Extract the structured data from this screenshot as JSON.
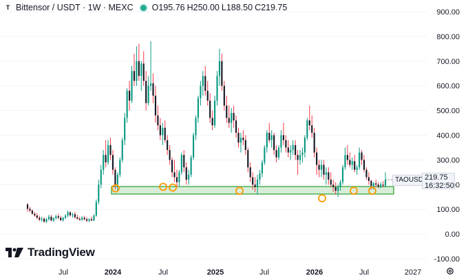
{
  "header": {
    "title": "Bittensor / USDT · 1W · MEXC",
    "ohlc": [
      {
        "key": "O",
        "value": "195.76"
      },
      {
        "key": "H",
        "value": "250.00"
      },
      {
        "key": "L",
        "value": "188.50"
      },
      {
        "key": "C",
        "value": "219.75"
      }
    ]
  },
  "logo": {
    "text": "TradingView"
  },
  "price_tag": {
    "symbol": "TAOUSDT",
    "price": "219.75",
    "countdown": "16:32:50"
  },
  "colors": {
    "up": "#089981",
    "down": "#f23645",
    "support": "#4caf50",
    "marker": "#ff9800"
  },
  "chart_data": {
    "type": "candlestick",
    "y_ticks": [
      "900.00",
      "800.00",
      "700.00",
      "600.00",
      "500.00",
      "400.00",
      "300.00",
      "200.00",
      "100.00",
      "0.00",
      "-100.00"
    ],
    "y_range": [
      -100,
      900
    ],
    "x_ticks": [
      "Jul",
      "2024",
      "Jul",
      "2025",
      "Jul",
      "2026",
      "Jul",
      "2027"
    ],
    "support_zone": {
      "low": 162,
      "high": 192
    },
    "support_touches": [
      185,
      191,
      188,
      175,
      145,
      175,
      175
    ],
    "series": [
      {
        "o": 120,
        "h": 125,
        "l": 90,
        "c": 102
      },
      {
        "o": 102,
        "h": 110,
        "l": 88,
        "c": 95
      },
      {
        "o": 95,
        "h": 100,
        "l": 78,
        "c": 82
      },
      {
        "o": 82,
        "h": 90,
        "l": 70,
        "c": 75
      },
      {
        "o": 75,
        "h": 85,
        "l": 60,
        "c": 66
      },
      {
        "o": 66,
        "h": 75,
        "l": 52,
        "c": 58
      },
      {
        "o": 58,
        "h": 70,
        "l": 50,
        "c": 62
      },
      {
        "o": 62,
        "h": 68,
        "l": 45,
        "c": 50
      },
      {
        "o": 50,
        "h": 65,
        "l": 44,
        "c": 60
      },
      {
        "o": 60,
        "h": 78,
        "l": 55,
        "c": 70
      },
      {
        "o": 70,
        "h": 78,
        "l": 52,
        "c": 55
      },
      {
        "o": 55,
        "h": 68,
        "l": 48,
        "c": 64
      },
      {
        "o": 64,
        "h": 78,
        "l": 58,
        "c": 72
      },
      {
        "o": 72,
        "h": 82,
        "l": 60,
        "c": 66
      },
      {
        "o": 66,
        "h": 74,
        "l": 52,
        "c": 56
      },
      {
        "o": 56,
        "h": 70,
        "l": 50,
        "c": 65
      },
      {
        "o": 65,
        "h": 80,
        "l": 60,
        "c": 75
      },
      {
        "o": 75,
        "h": 95,
        "l": 68,
        "c": 88
      },
      {
        "o": 88,
        "h": 92,
        "l": 70,
        "c": 76
      },
      {
        "o": 76,
        "h": 86,
        "l": 66,
        "c": 80
      },
      {
        "o": 80,
        "h": 90,
        "l": 62,
        "c": 68
      },
      {
        "o": 68,
        "h": 78,
        "l": 58,
        "c": 62
      },
      {
        "o": 62,
        "h": 70,
        "l": 54,
        "c": 58
      },
      {
        "o": 58,
        "h": 72,
        "l": 52,
        "c": 66
      },
      {
        "o": 66,
        "h": 74,
        "l": 55,
        "c": 60
      },
      {
        "o": 60,
        "h": 68,
        "l": 48,
        "c": 54
      },
      {
        "o": 54,
        "h": 64,
        "l": 48,
        "c": 60
      },
      {
        "o": 60,
        "h": 70,
        "l": 52,
        "c": 55
      },
      {
        "o": 55,
        "h": 80,
        "l": 52,
        "c": 75
      },
      {
        "o": 75,
        "h": 140,
        "l": 70,
        "c": 130
      },
      {
        "o": 130,
        "h": 220,
        "l": 120,
        "c": 200
      },
      {
        "o": 200,
        "h": 280,
        "l": 185,
        "c": 260
      },
      {
        "o": 260,
        "h": 340,
        "l": 240,
        "c": 320
      },
      {
        "o": 320,
        "h": 380,
        "l": 270,
        "c": 290
      },
      {
        "o": 290,
        "h": 380,
        "l": 280,
        "c": 360
      },
      {
        "o": 360,
        "h": 390,
        "l": 300,
        "c": 320
      },
      {
        "o": 320,
        "h": 340,
        "l": 240,
        "c": 260
      },
      {
        "o": 260,
        "h": 270,
        "l": 180,
        "c": 200
      },
      {
        "o": 200,
        "h": 250,
        "l": 175,
        "c": 240
      },
      {
        "o": 240,
        "h": 310,
        "l": 230,
        "c": 300
      },
      {
        "o": 300,
        "h": 390,
        "l": 290,
        "c": 380
      },
      {
        "o": 380,
        "h": 490,
        "l": 360,
        "c": 470
      },
      {
        "o": 470,
        "h": 590,
        "l": 450,
        "c": 580
      },
      {
        "o": 580,
        "h": 620,
        "l": 500,
        "c": 540
      },
      {
        "o": 540,
        "h": 680,
        "l": 530,
        "c": 660
      },
      {
        "o": 660,
        "h": 730,
        "l": 600,
        "c": 620
      },
      {
        "o": 620,
        "h": 760,
        "l": 600,
        "c": 700
      },
      {
        "o": 700,
        "h": 770,
        "l": 620,
        "c": 640
      },
      {
        "o": 640,
        "h": 700,
        "l": 580,
        "c": 690
      },
      {
        "o": 690,
        "h": 740,
        "l": 600,
        "c": 620
      },
      {
        "o": 620,
        "h": 660,
        "l": 500,
        "c": 530
      },
      {
        "o": 530,
        "h": 640,
        "l": 520,
        "c": 600
      },
      {
        "o": 600,
        "h": 780,
        "l": 580,
        "c": 610
      },
      {
        "o": 610,
        "h": 650,
        "l": 530,
        "c": 560
      },
      {
        "o": 560,
        "h": 600,
        "l": 450,
        "c": 480
      },
      {
        "o": 480,
        "h": 520,
        "l": 420,
        "c": 440
      },
      {
        "o": 440,
        "h": 470,
        "l": 380,
        "c": 400
      },
      {
        "o": 400,
        "h": 450,
        "l": 360,
        "c": 430
      },
      {
        "o": 430,
        "h": 460,
        "l": 370,
        "c": 380
      },
      {
        "o": 380,
        "h": 400,
        "l": 320,
        "c": 340
      },
      {
        "o": 340,
        "h": 360,
        "l": 280,
        "c": 300
      },
      {
        "o": 300,
        "h": 310,
        "l": 230,
        "c": 250
      },
      {
        "o": 250,
        "h": 300,
        "l": 210,
        "c": 230
      },
      {
        "o": 230,
        "h": 260,
        "l": 190,
        "c": 210
      },
      {
        "o": 210,
        "h": 260,
        "l": 195,
        "c": 250
      },
      {
        "o": 250,
        "h": 330,
        "l": 240,
        "c": 320
      },
      {
        "o": 320,
        "h": 340,
        "l": 250,
        "c": 270
      },
      {
        "o": 270,
        "h": 290,
        "l": 200,
        "c": 220
      },
      {
        "o": 220,
        "h": 260,
        "l": 200,
        "c": 240
      },
      {
        "o": 240,
        "h": 320,
        "l": 230,
        "c": 310
      },
      {
        "o": 310,
        "h": 410,
        "l": 300,
        "c": 400
      },
      {
        "o": 400,
        "h": 480,
        "l": 380,
        "c": 470
      },
      {
        "o": 470,
        "h": 560,
        "l": 450,
        "c": 550
      },
      {
        "o": 550,
        "h": 620,
        "l": 520,
        "c": 600
      },
      {
        "o": 600,
        "h": 660,
        "l": 560,
        "c": 640
      },
      {
        "o": 640,
        "h": 680,
        "l": 560,
        "c": 580
      },
      {
        "o": 580,
        "h": 620,
        "l": 520,
        "c": 540
      },
      {
        "o": 540,
        "h": 570,
        "l": 450,
        "c": 470
      },
      {
        "o": 470,
        "h": 500,
        "l": 420,
        "c": 440
      },
      {
        "o": 440,
        "h": 560,
        "l": 430,
        "c": 540
      },
      {
        "o": 540,
        "h": 660,
        "l": 520,
        "c": 640
      },
      {
        "o": 640,
        "h": 750,
        "l": 600,
        "c": 700
      },
      {
        "o": 700,
        "h": 730,
        "l": 580,
        "c": 600
      },
      {
        "o": 600,
        "h": 620,
        "l": 500,
        "c": 520
      },
      {
        "o": 520,
        "h": 560,
        "l": 450,
        "c": 470
      },
      {
        "o": 470,
        "h": 520,
        "l": 430,
        "c": 450
      },
      {
        "o": 450,
        "h": 510,
        "l": 410,
        "c": 490
      },
      {
        "o": 490,
        "h": 520,
        "l": 430,
        "c": 460
      },
      {
        "o": 460,
        "h": 480,
        "l": 390,
        "c": 410
      },
      {
        "o": 410,
        "h": 430,
        "l": 350,
        "c": 370
      },
      {
        "o": 370,
        "h": 410,
        "l": 330,
        "c": 390
      },
      {
        "o": 390,
        "h": 420,
        "l": 360,
        "c": 380
      },
      {
        "o": 380,
        "h": 400,
        "l": 320,
        "c": 340
      },
      {
        "o": 340,
        "h": 350,
        "l": 250,
        "c": 270
      },
      {
        "o": 270,
        "h": 290,
        "l": 210,
        "c": 230
      },
      {
        "o": 230,
        "h": 250,
        "l": 180,
        "c": 200
      },
      {
        "o": 200,
        "h": 230,
        "l": 170,
        "c": 190
      },
      {
        "o": 190,
        "h": 240,
        "l": 160,
        "c": 220
      },
      {
        "o": 220,
        "h": 260,
        "l": 200,
        "c": 245
      },
      {
        "o": 245,
        "h": 300,
        "l": 230,
        "c": 290
      },
      {
        "o": 290,
        "h": 360,
        "l": 280,
        "c": 350
      },
      {
        "o": 350,
        "h": 420,
        "l": 330,
        "c": 410
      },
      {
        "o": 410,
        "h": 450,
        "l": 370,
        "c": 380
      },
      {
        "o": 380,
        "h": 420,
        "l": 350,
        "c": 400
      },
      {
        "o": 400,
        "h": 410,
        "l": 320,
        "c": 340
      },
      {
        "o": 340,
        "h": 360,
        "l": 290,
        "c": 310
      },
      {
        "o": 310,
        "h": 360,
        "l": 300,
        "c": 350
      },
      {
        "o": 350,
        "h": 420,
        "l": 330,
        "c": 400
      },
      {
        "o": 400,
        "h": 450,
        "l": 360,
        "c": 380
      },
      {
        "o": 380,
        "h": 400,
        "l": 330,
        "c": 350
      },
      {
        "o": 350,
        "h": 380,
        "l": 310,
        "c": 330
      },
      {
        "o": 330,
        "h": 360,
        "l": 300,
        "c": 340
      },
      {
        "o": 340,
        "h": 380,
        "l": 320,
        "c": 360
      },
      {
        "o": 360,
        "h": 380,
        "l": 300,
        "c": 320
      },
      {
        "o": 320,
        "h": 340,
        "l": 240,
        "c": 300
      },
      {
        "o": 300,
        "h": 340,
        "l": 280,
        "c": 320
      },
      {
        "o": 320,
        "h": 350,
        "l": 290,
        "c": 330
      },
      {
        "o": 330,
        "h": 400,
        "l": 310,
        "c": 390
      },
      {
        "o": 390,
        "h": 470,
        "l": 380,
        "c": 460
      },
      {
        "o": 460,
        "h": 520,
        "l": 420,
        "c": 440
      },
      {
        "o": 440,
        "h": 480,
        "l": 390,
        "c": 410
      },
      {
        "o": 410,
        "h": 430,
        "l": 310,
        "c": 330
      },
      {
        "o": 330,
        "h": 350,
        "l": 240,
        "c": 280
      },
      {
        "o": 280,
        "h": 300,
        "l": 230,
        "c": 260
      },
      {
        "o": 260,
        "h": 300,
        "l": 230,
        "c": 280
      },
      {
        "o": 280,
        "h": 300,
        "l": 220,
        "c": 240
      },
      {
        "o": 240,
        "h": 270,
        "l": 200,
        "c": 250
      },
      {
        "o": 250,
        "h": 270,
        "l": 200,
        "c": 220
      },
      {
        "o": 220,
        "h": 250,
        "l": 190,
        "c": 200
      },
      {
        "o": 200,
        "h": 220,
        "l": 170,
        "c": 190
      },
      {
        "o": 190,
        "h": 210,
        "l": 160,
        "c": 175
      },
      {
        "o": 175,
        "h": 200,
        "l": 150,
        "c": 190
      },
      {
        "o": 190,
        "h": 220,
        "l": 175,
        "c": 210
      },
      {
        "o": 210,
        "h": 280,
        "l": 200,
        "c": 270
      },
      {
        "o": 270,
        "h": 350,
        "l": 260,
        "c": 320
      },
      {
        "o": 320,
        "h": 360,
        "l": 280,
        "c": 300
      },
      {
        "o": 300,
        "h": 330,
        "l": 270,
        "c": 280
      },
      {
        "o": 280,
        "h": 310,
        "l": 260,
        "c": 295
      },
      {
        "o": 295,
        "h": 320,
        "l": 250,
        "c": 260
      },
      {
        "o": 260,
        "h": 280,
        "l": 240,
        "c": 270
      },
      {
        "o": 270,
        "h": 350,
        "l": 260,
        "c": 330
      },
      {
        "o": 330,
        "h": 340,
        "l": 280,
        "c": 300
      },
      {
        "o": 300,
        "h": 320,
        "l": 250,
        "c": 260
      },
      {
        "o": 260,
        "h": 270,
        "l": 220,
        "c": 230
      },
      {
        "o": 230,
        "h": 250,
        "l": 200,
        "c": 215
      },
      {
        "o": 215,
        "h": 220,
        "l": 180,
        "c": 195
      },
      {
        "o": 195,
        "h": 210,
        "l": 180,
        "c": 205
      },
      {
        "o": 205,
        "h": 220,
        "l": 190,
        "c": 200
      },
      {
        "o": 200,
        "h": 210,
        "l": 185,
        "c": 192
      },
      {
        "o": 192,
        "h": 210,
        "l": 185,
        "c": 200
      },
      {
        "o": 200,
        "h": 215,
        "l": 188,
        "c": 196
      },
      {
        "o": 195.76,
        "h": 250,
        "l": 188.5,
        "c": 219.75
      }
    ]
  }
}
